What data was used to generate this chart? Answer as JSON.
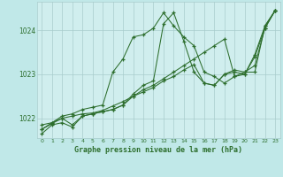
{
  "title": "Graphe pression niveau de la mer (hPa)",
  "background_color": "#c0e8e8",
  "plot_bg_color": "#d0eeee",
  "grid_color": "#a8cccc",
  "line_color": "#2d6e2d",
  "xlim": [
    -0.5,
    23.5
  ],
  "ylim": [
    1021.55,
    1024.65
  ],
  "yticks": [
    1022,
    1023,
    1024
  ],
  "xticks": [
    0,
    1,
    2,
    3,
    4,
    5,
    6,
    7,
    8,
    9,
    10,
    11,
    12,
    13,
    14,
    15,
    16,
    17,
    18,
    19,
    20,
    21,
    22,
    23
  ],
  "series": [
    [
      1021.65,
      1021.85,
      1021.9,
      1021.8,
      1022.05,
      1022.1,
      1022.15,
      1022.2,
      1022.3,
      1022.5,
      1022.65,
      1022.75,
      1022.9,
      1023.05,
      1023.2,
      1023.35,
      1023.5,
      1023.65,
      1023.8,
      1022.95,
      1023.05,
      1023.05,
      1024.1,
      1024.45
    ],
    [
      1021.85,
      1021.9,
      1022.05,
      1022.1,
      1022.2,
      1022.25,
      1022.3,
      1023.05,
      1023.35,
      1023.85,
      1023.9,
      1024.05,
      1024.4,
      1024.1,
      1023.85,
      1023.65,
      1023.05,
      1022.95,
      1022.8,
      1022.95,
      1023.0,
      1023.45,
      1024.1,
      1024.45
    ],
    [
      1021.75,
      1021.9,
      1022.0,
      1021.85,
      1022.05,
      1022.1,
      1022.15,
      1022.2,
      1022.3,
      1022.55,
      1022.75,
      1022.85,
      1024.15,
      1024.4,
      1023.75,
      1023.05,
      1022.8,
      1022.75,
      1023.0,
      1023.05,
      1023.0,
      1023.4,
      1024.05,
      1024.45
    ],
    [
      1021.75,
      1021.88,
      1022.0,
      1022.05,
      1022.1,
      1022.12,
      1022.18,
      1022.28,
      1022.38,
      1022.5,
      1022.6,
      1022.7,
      1022.85,
      1022.95,
      1023.1,
      1023.22,
      1022.8,
      1022.75,
      1023.0,
      1023.1,
      1023.05,
      1023.2,
      1024.05,
      1024.45
    ]
  ]
}
